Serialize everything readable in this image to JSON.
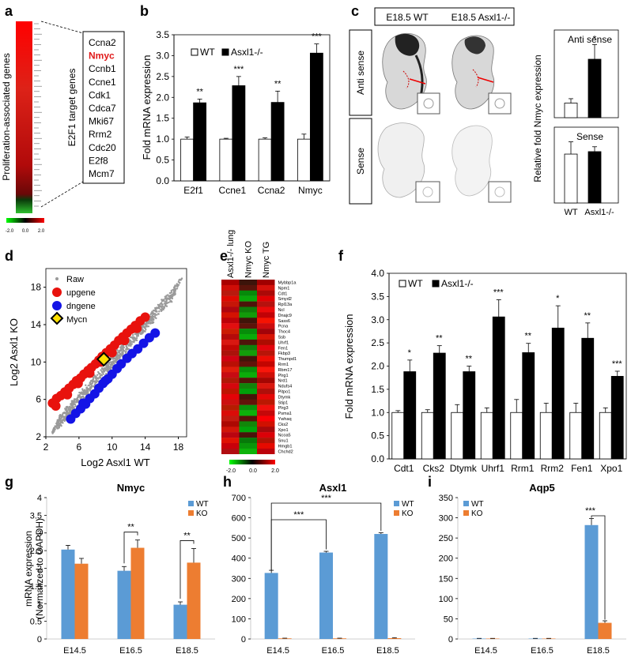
{
  "figure": {
    "panel_letters": [
      "a",
      "b",
      "c",
      "d",
      "e",
      "f",
      "g",
      "h",
      "i"
    ],
    "colorbar_ticks": [
      "-2.0",
      "0.0",
      "2.0"
    ]
  },
  "panel_a": {
    "ylabel": "Proliferation-associated genes",
    "box_label": "E2F1 target genes",
    "genes": [
      "Ccna2",
      "Nmyc",
      "Ccnb1",
      "Ccne1",
      "Cdk1",
      "Cdca7",
      "Mki67",
      "Rrm2",
      "Cdc20",
      "E2f8",
      "Mcm7"
    ],
    "highlight_gene": "Nmyc",
    "highlight_color": "#e01b1b"
  },
  "panel_c": {
    "title_wt": "E18.5 WT",
    "title_ko": "E18.5 Asxl1-/-",
    "row_labels": [
      "Anti sense",
      "Sense"
    ],
    "ylabel": "Relative fold Nmyc expression",
    "xticks": [
      "WT",
      "Asxl1-/-"
    ],
    "antisense_label": "Anti sense",
    "sense_label": "Sense",
    "antisense_star": "*"
  },
  "panel_e": {
    "columns": [
      "Asxl1-/- lung",
      "Nmyc KO",
      "Nmyc TG"
    ],
    "genes": [
      "Mybbp1a",
      "Npm1",
      "Cdt1",
      "Smyd2",
      "Rpl13a",
      "Ncl",
      "Dnajc9",
      "Sass6",
      "Pcna",
      "Thoc4",
      "Ssb",
      "Uhrf1",
      "Fen1",
      "Fkbp3",
      "Thumpd1",
      "Rrm1",
      "Rbm17",
      "Plrg1",
      "Nrd1",
      "Ndufs4",
      "Pitpo1",
      "Dtymk",
      "Stip1",
      "Plrg3",
      "Psma1",
      "Ywhaq",
      "Cks2",
      "Xpo1",
      "Ncoa5",
      "Snu1",
      "Hmgb1",
      "Chchd2"
    ]
  },
  "chart_data": [
    {
      "id": "b",
      "type": "bar",
      "categories": [
        "E2f1",
        "Ccne1",
        "Ccna2",
        "Nmyc"
      ],
      "series": [
        {
          "name": "WT",
          "values": [
            1.0,
            1.0,
            1.0,
            1.0
          ],
          "errors": [
            0.05,
            0.02,
            0.03,
            0.12
          ],
          "color": "#ffffff"
        },
        {
          "name": "Asxl1-/-",
          "values": [
            1.87,
            2.28,
            1.88,
            3.06
          ],
          "errors": [
            0.09,
            0.22,
            0.27,
            0.22
          ],
          "color": "#000000"
        }
      ],
      "significance": [
        "**",
        "***",
        "**",
        "***"
      ],
      "xlabel": "",
      "ylabel": "Fold mRNA expression",
      "ylim": [
        0,
        3.5
      ],
      "yticks": [
        "0.0",
        "0.5",
        "1.0",
        "1.5",
        "2.0",
        "2.5",
        "3.0",
        "3.5"
      ]
    },
    {
      "id": "c-antisense",
      "type": "bar",
      "categories": [
        "WT",
        "Asxl1-/-"
      ],
      "values": [
        1.0,
        4.0
      ],
      "errors": [
        0.3,
        1.0
      ],
      "colors": [
        "#ffffff",
        "#000000"
      ],
      "ylim": [
        0,
        6
      ],
      "yticks": [],
      "label": "Anti sense"
    },
    {
      "id": "c-sense",
      "type": "bar",
      "categories": [
        "WT",
        "Asxl1-/-"
      ],
      "values": [
        1.0,
        1.05
      ],
      "errors": [
        0.25,
        0.1
      ],
      "colors": [
        "#ffffff",
        "#000000"
      ],
      "ylim": [
        0,
        1.55
      ],
      "yticks": [],
      "label": "Sense"
    },
    {
      "id": "d",
      "type": "scatter",
      "xlabel": "Log2 Asxl1 WT",
      "ylabel": "Log2 Asxl1 KO",
      "xlim": [
        2,
        19
      ],
      "ylim": [
        2,
        20
      ],
      "xticks": [
        "2",
        "6",
        "10",
        "14",
        "18"
      ],
      "yticks": [
        "2",
        "6",
        "10",
        "14",
        "18"
      ],
      "legend": [
        "Raw",
        "upgene",
        "dngene",
        "Mycn"
      ],
      "series": [
        {
          "name": "upgene",
          "color": "#e8120d",
          "points": [
            [
              2.8,
              5.6
            ],
            [
              3.3,
              6.1
            ],
            [
              3.8,
              6.4
            ],
            [
              4.3,
              6.8
            ],
            [
              4.8,
              7.2
            ],
            [
              5.3,
              7.6
            ],
            [
              5.7,
              8.0
            ],
            [
              6.2,
              8.3
            ],
            [
              6.6,
              8.7
            ],
            [
              7.1,
              9.1
            ],
            [
              7.5,
              9.4
            ],
            [
              8.0,
              9.8
            ],
            [
              8.4,
              10.2
            ],
            [
              8.8,
              10.6
            ],
            [
              9.3,
              11.0
            ],
            [
              9.8,
              11.4
            ],
            [
              10.3,
              11.8
            ],
            [
              10.8,
              12.3
            ],
            [
              11.3,
              12.7
            ],
            [
              11.8,
              13.1
            ],
            [
              12.3,
              13.5
            ],
            [
              12.8,
              13.9
            ],
            [
              13.4,
              14.4
            ],
            [
              14.0,
              14.8
            ],
            [
              3.2,
              5.3
            ],
            [
              4.6,
              6.5
            ],
            [
              5.9,
              7.7
            ],
            [
              7.3,
              8.8
            ],
            [
              8.6,
              10.0
            ],
            [
              10.0,
              11.0
            ],
            [
              11.5,
              12.3
            ],
            [
              13.0,
              13.6
            ]
          ]
        },
        {
          "name": "dngene",
          "color": "#1414e6",
          "points": [
            [
              5.0,
              3.9
            ],
            [
              5.6,
              4.5
            ],
            [
              6.2,
              5.0
            ],
            [
              6.8,
              5.5
            ],
            [
              7.3,
              6.1
            ],
            [
              7.9,
              6.6
            ],
            [
              8.4,
              7.2
            ],
            [
              8.9,
              7.7
            ],
            [
              9.5,
              8.2
            ],
            [
              10.0,
              8.7
            ],
            [
              10.6,
              9.3
            ],
            [
              11.1,
              9.8
            ],
            [
              11.8,
              10.4
            ],
            [
              12.4,
              10.9
            ],
            [
              13.1,
              11.4
            ],
            [
              13.8,
              12.0
            ],
            [
              14.5,
              12.6
            ],
            [
              15.2,
              13.1
            ],
            [
              6.5,
              5.6
            ],
            [
              9.2,
              8.0
            ]
          ]
        },
        {
          "name": "Mycn",
          "color": "#ffe000",
          "points": [
            [
              9.0,
              10.3
            ]
          ]
        }
      ]
    },
    {
      "id": "f",
      "type": "bar",
      "categories": [
        "Cdt1",
        "Cks2",
        "Dtymk",
        "Uhrf1",
        "Rrm1",
        "Rrm2",
        "Fen1",
        "Xpo1"
      ],
      "series": [
        {
          "name": "WT",
          "values": [
            1.0,
            1.0,
            1.0,
            1.0,
            1.0,
            1.0,
            1.0,
            1.0
          ],
          "errors": [
            0.04,
            0.06,
            0.17,
            0.1,
            0.28,
            0.2,
            0.2,
            0.1
          ],
          "color": "#ffffff"
        },
        {
          "name": "Asxl1-/-",
          "values": [
            1.88,
            2.28,
            1.88,
            3.06,
            2.29,
            2.82,
            2.6,
            1.78
          ],
          "errors": [
            0.25,
            0.16,
            0.12,
            0.37,
            0.2,
            0.48,
            0.33,
            0.11
          ],
          "color": "#000000"
        }
      ],
      "significance": [
        "*",
        "**",
        "**",
        "***",
        "**",
        "*",
        "**",
        "***"
      ],
      "ylabel": "Fold mRNA expression",
      "ylim": [
        0,
        4.0
      ],
      "yticks": [
        "0.0",
        "0.5",
        "1.0",
        "1.5",
        "2.0",
        "2.5",
        "3.0",
        "3.5",
        "4.0"
      ]
    },
    {
      "id": "g",
      "type": "bar",
      "title": "Nmyc",
      "categories": [
        "E14.5",
        "E16.5",
        "E18.5"
      ],
      "series": [
        {
          "name": "WT",
          "values": [
            2.53,
            1.93,
            0.97
          ],
          "errors": [
            0.12,
            0.12,
            0.08
          ],
          "color": "#5b9bd5"
        },
        {
          "name": "KO",
          "values": [
            2.13,
            2.58,
            2.16
          ],
          "errors": [
            0.15,
            0.22,
            0.4
          ],
          "color": "#ed7d31"
        }
      ],
      "significance": [
        "",
        "**",
        "**"
      ],
      "ylabel": "mRNA expression (Normalized to GAPDH)",
      "ylim": [
        0,
        4
      ],
      "yticks": [
        "0",
        "0.5",
        "1",
        "1.5",
        "2",
        "2.5",
        "3",
        "3.5",
        "4"
      ]
    },
    {
      "id": "h",
      "type": "bar",
      "title": "Asxl1",
      "categories": [
        "E14.5",
        "E16.5",
        "E18.5"
      ],
      "series": [
        {
          "name": "WT",
          "values": [
            327,
            428,
            520
          ],
          "errors": [
            13,
            6,
            6
          ],
          "color": "#5b9bd5"
        },
        {
          "name": "KO",
          "values": [
            3,
            3,
            4
          ],
          "errors": [
            1,
            1,
            2
          ],
          "color": "#ed7d31"
        }
      ],
      "significance": [
        "***",
        "***"
      ],
      "ylim": [
        0,
        700
      ],
      "yticks": [
        "0",
        "100",
        "200",
        "300",
        "400",
        "500",
        "600",
        "700"
      ]
    },
    {
      "id": "i",
      "type": "bar",
      "title": "Aqp5",
      "categories": [
        "E14.5",
        "E16.5",
        "E18.5"
      ],
      "series": [
        {
          "name": "WT",
          "values": [
            1,
            1,
            282
          ],
          "errors": [
            0.5,
            0.5,
            16
          ],
          "color": "#5b9bd5"
        },
        {
          "name": "KO",
          "values": [
            1,
            1,
            40
          ],
          "errors": [
            0.5,
            0.5,
            5
          ],
          "color": "#ed7d31"
        }
      ],
      "significance": [
        "***"
      ],
      "ylim": [
        0,
        350
      ],
      "yticks": [
        "0",
        "50",
        "100",
        "150",
        "200",
        "250",
        "300",
        "350"
      ]
    }
  ]
}
